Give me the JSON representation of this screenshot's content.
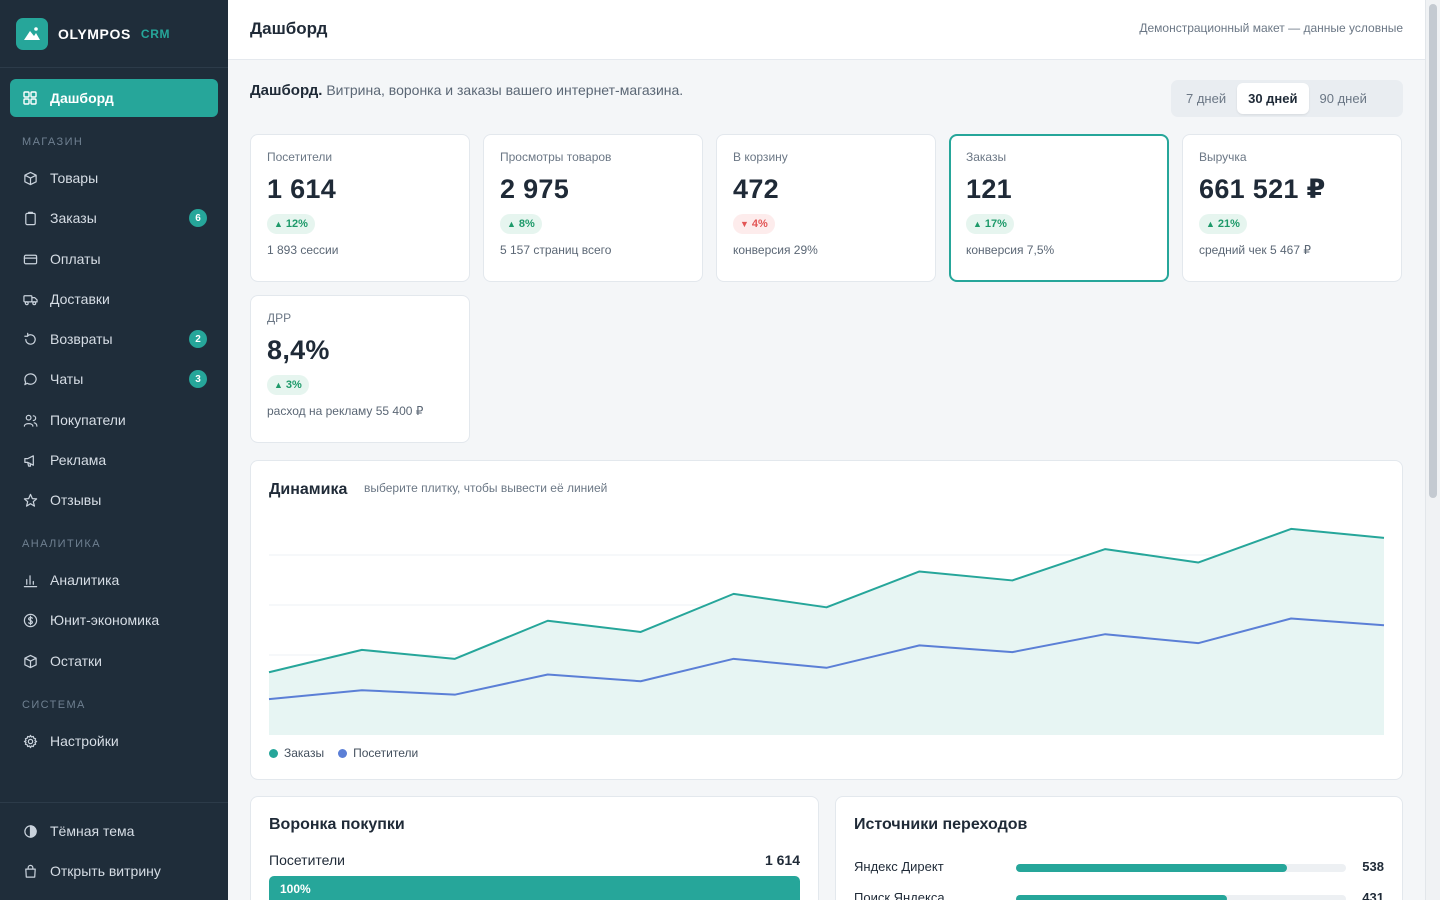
{
  "app": {
    "brand": "OLYMPOS",
    "brand_tag": "CRM"
  },
  "sidebar": {
    "active": {
      "label": "Дашборд",
      "icon": "grid-icon"
    },
    "sections": [
      {
        "title": "МАГАЗИН",
        "items": [
          {
            "label": "Товары",
            "icon": "box-icon"
          },
          {
            "label": "Заказы",
            "icon": "clipboard-icon",
            "badge": "6"
          },
          {
            "label": "Оплаты",
            "icon": "credit-card-icon"
          },
          {
            "label": "Доставки",
            "icon": "truck-icon"
          },
          {
            "label": "Возвраты",
            "icon": "refresh-icon",
            "badge": "2"
          },
          {
            "label": "Чаты",
            "icon": "chat-icon",
            "badge": "3"
          },
          {
            "label": "Покупатели",
            "icon": "users-icon"
          },
          {
            "label": "Реклама",
            "icon": "megaphone-icon"
          },
          {
            "label": "Отзывы",
            "icon": "star-icon"
          }
        ]
      },
      {
        "title": "АНАЛИТИКА",
        "items": [
          {
            "label": "Аналитика",
            "icon": "bar-chart-icon"
          },
          {
            "label": "Юнит-экономика",
            "icon": "dollar-circle-icon"
          },
          {
            "label": "Остатки",
            "icon": "box-icon"
          }
        ]
      },
      {
        "title": "СИСТЕМА",
        "items": [
          {
            "label": "Настройки",
            "icon": "gear-icon"
          }
        ]
      }
    ],
    "bottom": [
      {
        "label": "Тёмная тема",
        "icon": "contrast-icon"
      },
      {
        "label": "Открыть витрину",
        "icon": "shopping-bag-icon"
      }
    ]
  },
  "header": {
    "title": "Дашборд",
    "note": "Демонстрационный макет — данные условные"
  },
  "intro": {
    "bold": "Дашборд.",
    "text": "Витрина, воронка и заказы вашего интернет-магазина."
  },
  "periods": [
    "7 дней",
    "30 дней",
    "90 дней"
  ],
  "period_selected": "30 дней",
  "kpis": [
    {
      "label": "Посетители",
      "value": "1 614",
      "delta": "12%",
      "direction": "up",
      "sub": "1 893 сессии"
    },
    {
      "label": "Просмотры товаров",
      "value": "2 975",
      "delta": "8%",
      "direction": "up",
      "sub": "5 157 страниц всего"
    },
    {
      "label": "В корзину",
      "value": "472",
      "delta": "4%",
      "direction": "down",
      "sub": "конверсия 29%"
    },
    {
      "label": "Заказы",
      "value": "121",
      "delta": "17%",
      "direction": "up",
      "sub": "конверсия 7,5%",
      "selected": true
    },
    {
      "label": "Выручка",
      "value": "661 521 ₽",
      "delta": "21%",
      "direction": "up",
      "sub": "средний чек 5 467 ₽"
    },
    {
      "label": "ДРР",
      "value": "8,4%",
      "delta": "3%",
      "direction": "up",
      "sub": "расход на рекламу 55 400 ₽"
    }
  ],
  "chart": {
    "title": "Динамика",
    "hint": "выберите плитку, чтобы вывести её линией"
  },
  "chart_data": {
    "type": "area",
    "title": "Динамика",
    "x": [
      1,
      2,
      3,
      4,
      5,
      6,
      7,
      8,
      9,
      10,
      11,
      12,
      13
    ],
    "ylim": [
      0,
      1
    ],
    "grid": true,
    "legend": "bottom-left",
    "series": [
      {
        "name": "Заказы",
        "color": "#26a69a",
        "values": [
          0.28,
          0.38,
          0.34,
          0.51,
          0.46,
          0.63,
          0.57,
          0.73,
          0.69,
          0.83,
          0.77,
          0.92,
          0.88
        ]
      },
      {
        "name": "Посетители",
        "color": "#5b7fd6",
        "values": [
          0.16,
          0.2,
          0.18,
          0.27,
          0.24,
          0.34,
          0.3,
          0.4,
          0.37,
          0.45,
          0.41,
          0.52,
          0.49
        ]
      }
    ]
  },
  "funnel": {
    "title": "Воронка покупки",
    "rows": [
      {
        "label": "Посетители",
        "value": "1 614",
        "percent_label": "100%",
        "percent": 100
      }
    ]
  },
  "sources": {
    "title": "Источники переходов",
    "rows": [
      {
        "label": "Яндекс Директ",
        "value": "538",
        "share": 0.82
      },
      {
        "label": "Поиск Яндекса",
        "value": "431",
        "share": 0.64
      }
    ]
  },
  "colors": {
    "accent": "#26a69a",
    "sidebar_bg": "#1f2d3a",
    "secondary_line": "#5b7fd6",
    "up": "#1e9a6a",
    "down": "#e25555"
  }
}
